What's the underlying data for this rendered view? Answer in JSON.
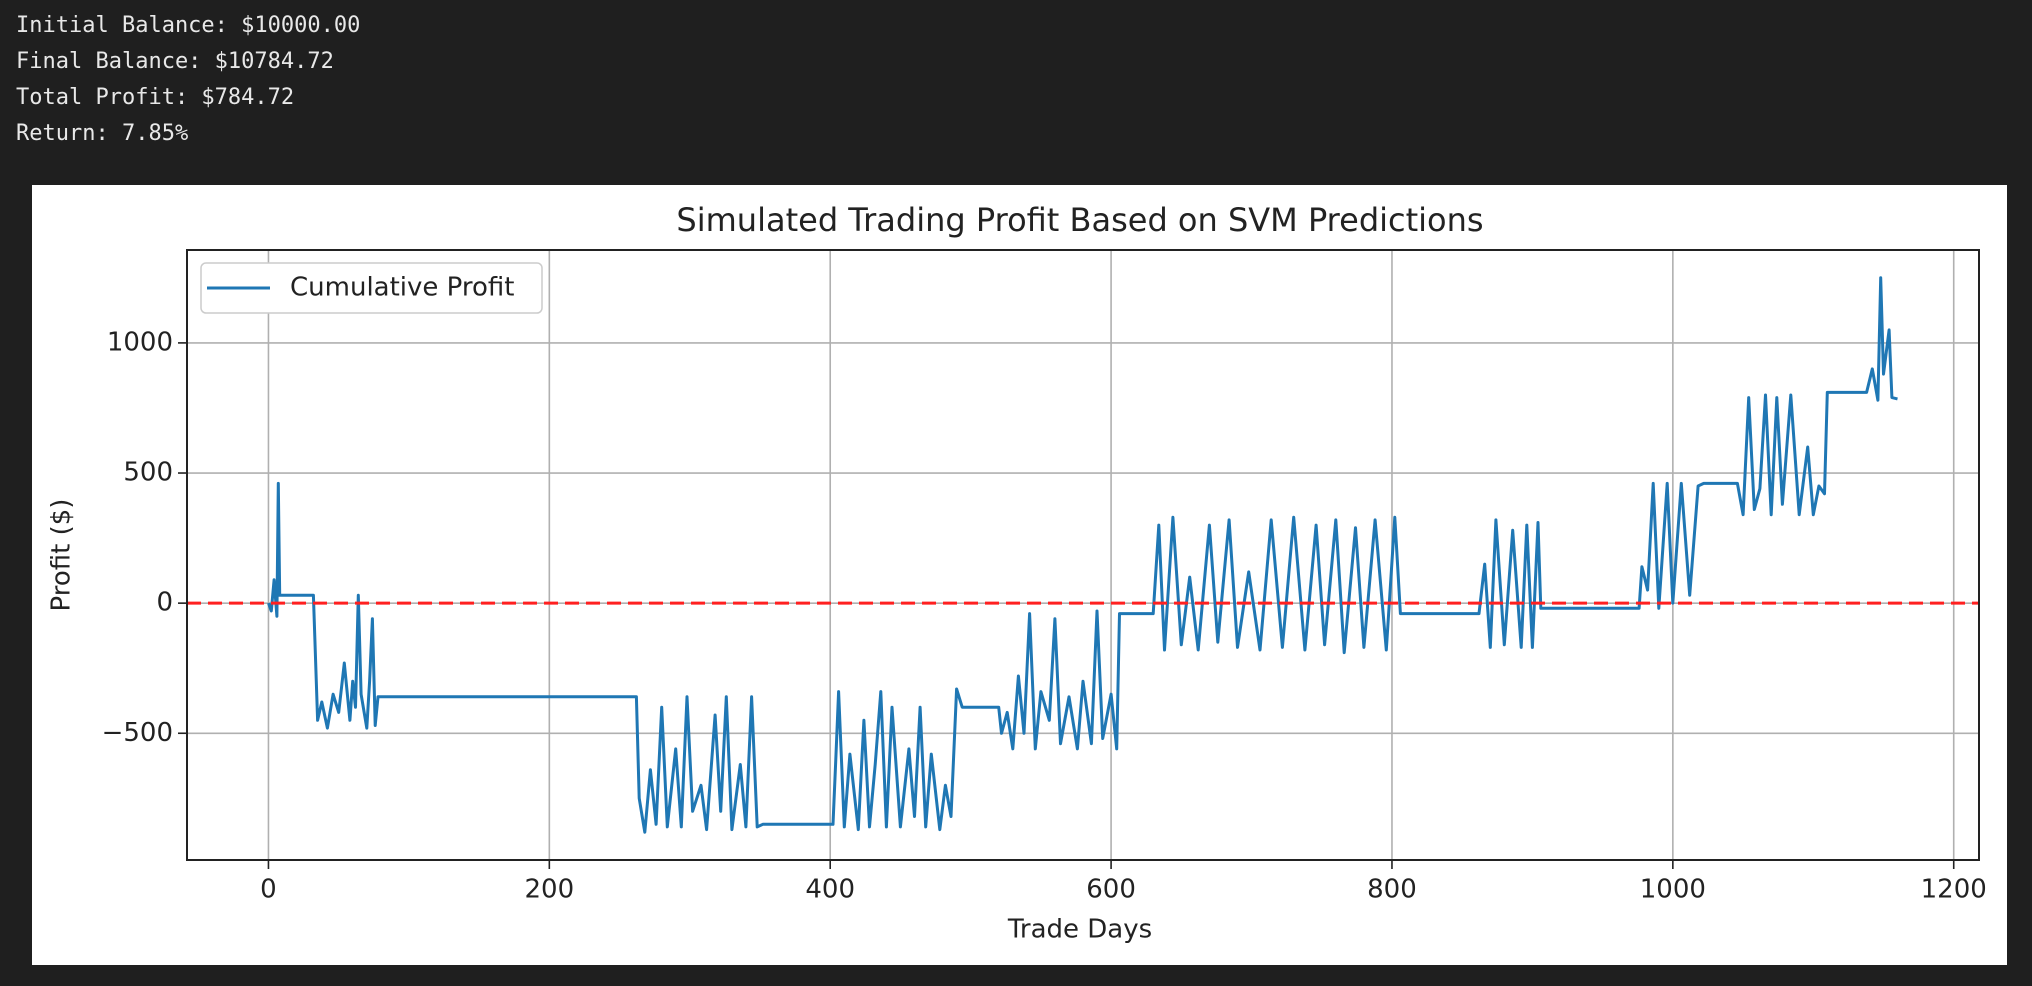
{
  "output": {
    "lines": [
      "Initial Balance: $10000.00",
      "Final Balance: $10784.72",
      "Total Profit: $784.72",
      "Return: 7.85%"
    ]
  },
  "chart_data": {
    "type": "line",
    "title": "Simulated Trading Profit Based on SVM Predictions",
    "x_label": "Trade Days",
    "y_label": "Profit ($)",
    "xlim": [
      -58,
      1218
    ],
    "ylim": [
      -987,
      1357
    ],
    "xticks": [
      0,
      200,
      400,
      600,
      800,
      1000,
      1200
    ],
    "yticks": [
      {
        "value": -500,
        "label": "−500"
      },
      0,
      500,
      1000
    ],
    "grid": true,
    "legend": "upper left",
    "reference_line": {
      "value": 0,
      "color": "#ff2020"
    },
    "series": [
      {
        "name": "Cumulative Profit",
        "color": "#1f77b4",
        "x": [
          0,
          2,
          4,
          6,
          7,
          8,
          10,
          32,
          35,
          38,
          42,
          46,
          50,
          54,
          58,
          60,
          62,
          64,
          66,
          70,
          72,
          74,
          76,
          78,
          262,
          264,
          268,
          272,
          276,
          280,
          284,
          290,
          294,
          298,
          302,
          308,
          312,
          318,
          322,
          326,
          330,
          336,
          340,
          344,
          348,
          352,
          402,
          404,
          406,
          410,
          414,
          420,
          424,
          428,
          432,
          436,
          440,
          444,
          450,
          456,
          460,
          464,
          468,
          472,
          478,
          482,
          486,
          490,
          494,
          520,
          522,
          526,
          530,
          534,
          538,
          542,
          546,
          550,
          556,
          560,
          564,
          570,
          576,
          580,
          586,
          590,
          594,
          600,
          604,
          606,
          630,
          634,
          638,
          644,
          650,
          656,
          662,
          670,
          676,
          684,
          690,
          698,
          706,
          714,
          722,
          730,
          738,
          746,
          752,
          760,
          766,
          774,
          780,
          788,
          796,
          802,
          806,
          862,
          866,
          870,
          874,
          880,
          886,
          892,
          896,
          900,
          904,
          906,
          976,
          978,
          982,
          986,
          990,
          996,
          1000,
          1006,
          1012,
          1018,
          1022,
          1046,
          1050,
          1054,
          1058,
          1062,
          1066,
          1070,
          1074,
          1078,
          1084,
          1090,
          1096,
          1100,
          1104,
          1108,
          1110,
          1138,
          1142,
          1146,
          1148,
          1150,
          1154,
          1156,
          1160
        ],
        "values": [
          0,
          -30,
          90,
          -50,
          460,
          30,
          30,
          30,
          -450,
          -380,
          -480,
          -350,
          -420,
          -230,
          -450,
          -300,
          -400,
          30,
          -350,
          -480,
          -300,
          -60,
          -470,
          -360,
          -360,
          -750,
          -880,
          -640,
          -850,
          -400,
          -860,
          -560,
          -860,
          -360,
          -800,
          -700,
          -870,
          -430,
          -800,
          -360,
          -870,
          -620,
          -860,
          -360,
          -860,
          -850,
          -850,
          -600,
          -340,
          -860,
          -580,
          -870,
          -450,
          -860,
          -620,
          -340,
          -860,
          -400,
          -860,
          -560,
          -820,
          -400,
          -860,
          -580,
          -870,
          -700,
          -820,
          -330,
          -400,
          -400,
          -500,
          -420,
          -560,
          -280,
          -500,
          -40,
          -560,
          -340,
          -450,
          -60,
          -540,
          -360,
          -560,
          -300,
          -540,
          -30,
          -520,
          -350,
          -560,
          -40,
          -40,
          300,
          -180,
          330,
          -160,
          100,
          -180,
          300,
          -150,
          320,
          -170,
          120,
          -180,
          320,
          -170,
          330,
          -180,
          300,
          -160,
          320,
          -190,
          290,
          -170,
          320,
          -180,
          330,
          -40,
          -40,
          150,
          -170,
          320,
          -160,
          280,
          -170,
          300,
          -170,
          310,
          -20,
          -20,
          140,
          50,
          460,
          -20,
          460,
          0,
          460,
          30,
          450,
          460,
          460,
          340,
          790,
          360,
          440,
          800,
          340,
          790,
          380,
          800,
          340,
          600,
          340,
          450,
          420,
          810,
          810,
          900,
          780,
          1250,
          880,
          1050,
          790,
          785
        ]
      }
    ]
  }
}
